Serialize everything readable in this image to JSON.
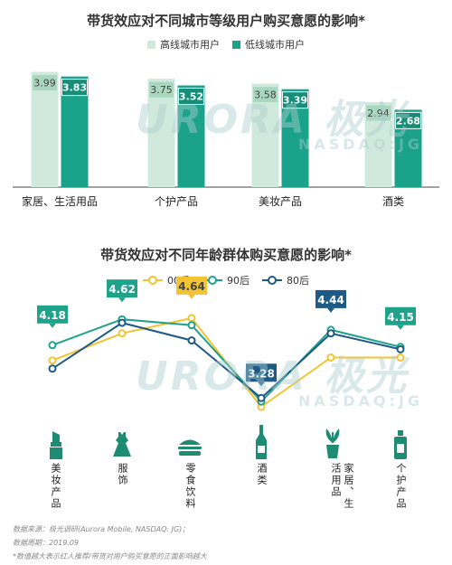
{
  "chart_data": [
    {
      "type": "bar",
      "title": "带货效应对不同城市等级用户购买意愿的影响*",
      "categories": [
        "家居、生活用品",
        "个护产品",
        "美妆产品",
        "酒类"
      ],
      "series": [
        {
          "name": "高线城市用户",
          "values": [
            3.99,
            3.75,
            3.58,
            2.94
          ]
        },
        {
          "name": "低线城市用户",
          "values": [
            3.83,
            3.52,
            3.39,
            2.68
          ]
        }
      ],
      "ylim": [
        0,
        4.6
      ],
      "grid": false,
      "legend": "top",
      "colors": [
        "#cfe9dd",
        "#1aa38a"
      ]
    },
    {
      "type": "line",
      "title": "带货效应对不同年龄群体购买意愿的影响*",
      "categories": [
        "美妆产品",
        "服饰",
        "零食饮料",
        "酒类",
        "家居、生活用品",
        "个护产品"
      ],
      "series": [
        {
          "name": "00后",
          "values": [
            3.92,
            4.38,
            4.64,
            3.13,
            3.97,
            3.97
          ]
        },
        {
          "name": "90后",
          "values": [
            4.18,
            4.62,
            4.52,
            3.22,
            4.44,
            4.15
          ]
        },
        {
          "name": "80后",
          "values": [
            3.78,
            4.56,
            4.26,
            3.28,
            4.38,
            4.11
          ]
        }
      ],
      "labels": [
        {
          "text": "4.18",
          "category": "美妆产品"
        },
        {
          "text": "4.62",
          "category": "服饰"
        },
        {
          "text": "4.64",
          "category": "零食饮料"
        },
        {
          "text": "3.28",
          "category": "酒类"
        },
        {
          "text": "4.44",
          "category": "家居、生活用品"
        },
        {
          "text": "4.15",
          "category": "个护产品"
        }
      ],
      "ylim": [
        2.9,
        4.9
      ],
      "grid": false,
      "legend": "top",
      "colors": [
        "#f2c332",
        "#1fa28a",
        "#1d5a86"
      ]
    }
  ],
  "watermark": {
    "logo": "URORA 极光",
    "sub": "NASDAQ:JG"
  },
  "icons": [
    "lipstick-icon",
    "dress-icon",
    "burger-icon",
    "wine-bottle-icon",
    "potted-plant-icon",
    "lotion-bottle-icon"
  ],
  "footer": {
    "source": "数据来源：极光调研(Aurora  Mobile, NASDAQ: JG)；",
    "period": "数据周期：2019.09",
    "note": "*数值越大表示红人推荐/带货对用户购买意愿的正面影响越大"
  }
}
